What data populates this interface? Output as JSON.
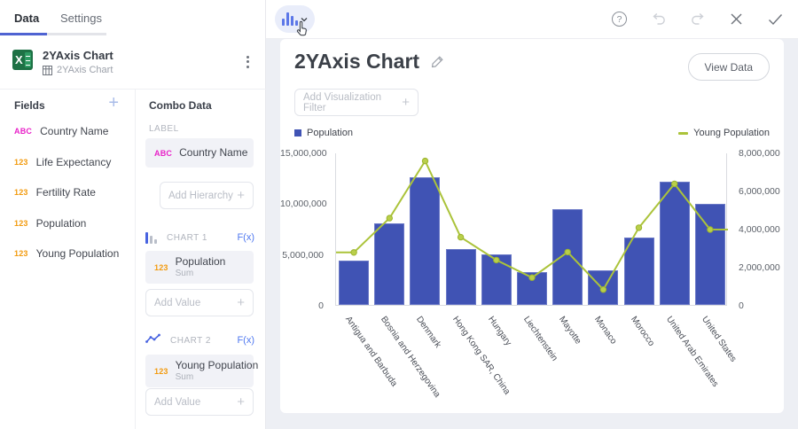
{
  "colors": {
    "accent_blue": "#4F63D2",
    "bar_fill": "#4053B4",
    "line_stroke": "#ABC33A",
    "marker_fill": "#B9CF4A",
    "abc_badge": "#E822C8",
    "num_badge": "#F29A0D",
    "excel_green": "#1E7145"
  },
  "left_panel": {
    "tabs": [
      {
        "label": "Data",
        "active": true
      },
      {
        "label": "Settings",
        "active": false
      }
    ],
    "dataset": {
      "title": "2YAxis Chart",
      "table_name": "2YAxis Chart"
    },
    "fields": {
      "header": "Fields",
      "add_icon": "+",
      "items": [
        {
          "badge": "ABC",
          "label": "Country Name"
        },
        {
          "badge": "123",
          "label": "Life Expectancy"
        },
        {
          "badge": "123",
          "label": "Fertility Rate"
        },
        {
          "badge": "123",
          "label": "Population"
        },
        {
          "badge": "123",
          "label": "Young Population"
        }
      ]
    },
    "combo": {
      "header": "Combo Data",
      "label_section": {
        "title": "LABEL",
        "chip": {
          "badge": "ABC",
          "label": "Country Name"
        },
        "add_placeholder": "Add Hierarchy"
      },
      "chart1": {
        "title": "CHART 1",
        "fx": "F(x)",
        "chip": {
          "badge": "123",
          "label": "Population",
          "agg": "Sum"
        },
        "add_placeholder": "Add Value"
      },
      "chart2": {
        "title": "CHART 2",
        "fx": "F(x)",
        "chip": {
          "badge": "123",
          "label": "Young Population",
          "agg": "Sum"
        },
        "add_placeholder": "Add Value"
      }
    }
  },
  "toolbar": {
    "help": "?"
  },
  "main": {
    "title": "2YAxis Chart",
    "view_data_label": "View Data",
    "filter_placeholder": "Add Visualization Filter"
  },
  "chart_data": {
    "type": "combo bar+line (dual y-axis)",
    "categories": [
      "Antigua and Barbuda",
      "Bosnia and Herzegovina",
      "Denmark",
      "Hong Kong SAR, China",
      "Hungary",
      "Liechtenstein",
      "Mayotte",
      "Monaco",
      "Morocco",
      "United Arab Emirates",
      "United States"
    ],
    "series": [
      {
        "name": "Population",
        "type": "bar",
        "y_axis": "left",
        "color": "#4053B4",
        "values": [
          4350000,
          8000000,
          12550000,
          5500000,
          5000000,
          3250000,
          9400000,
          3400000,
          6600000,
          12100000,
          9900000
        ]
      },
      {
        "name": "Young Population",
        "type": "line",
        "y_axis": "right",
        "color": "#ABC33A",
        "values": [
          2800000,
          4600000,
          7600000,
          3600000,
          2400000,
          1480000,
          2820000,
          850000,
          4100000,
          6400000,
          4000000
        ]
      }
    ],
    "left_axis": {
      "min": 0,
      "max": 15000000,
      "ticks": [
        "0",
        "5,000,000",
        "10,000,000",
        "15,000,000"
      ]
    },
    "right_axis": {
      "min": 0,
      "max": 8000000,
      "ticks": [
        "0",
        "2,000,000",
        "4,000,000",
        "6,000,000",
        "8,000,000"
      ]
    },
    "legend": {
      "left": "Population",
      "right": "Young Population"
    },
    "grid": false,
    "x_labels_rotated": true
  }
}
